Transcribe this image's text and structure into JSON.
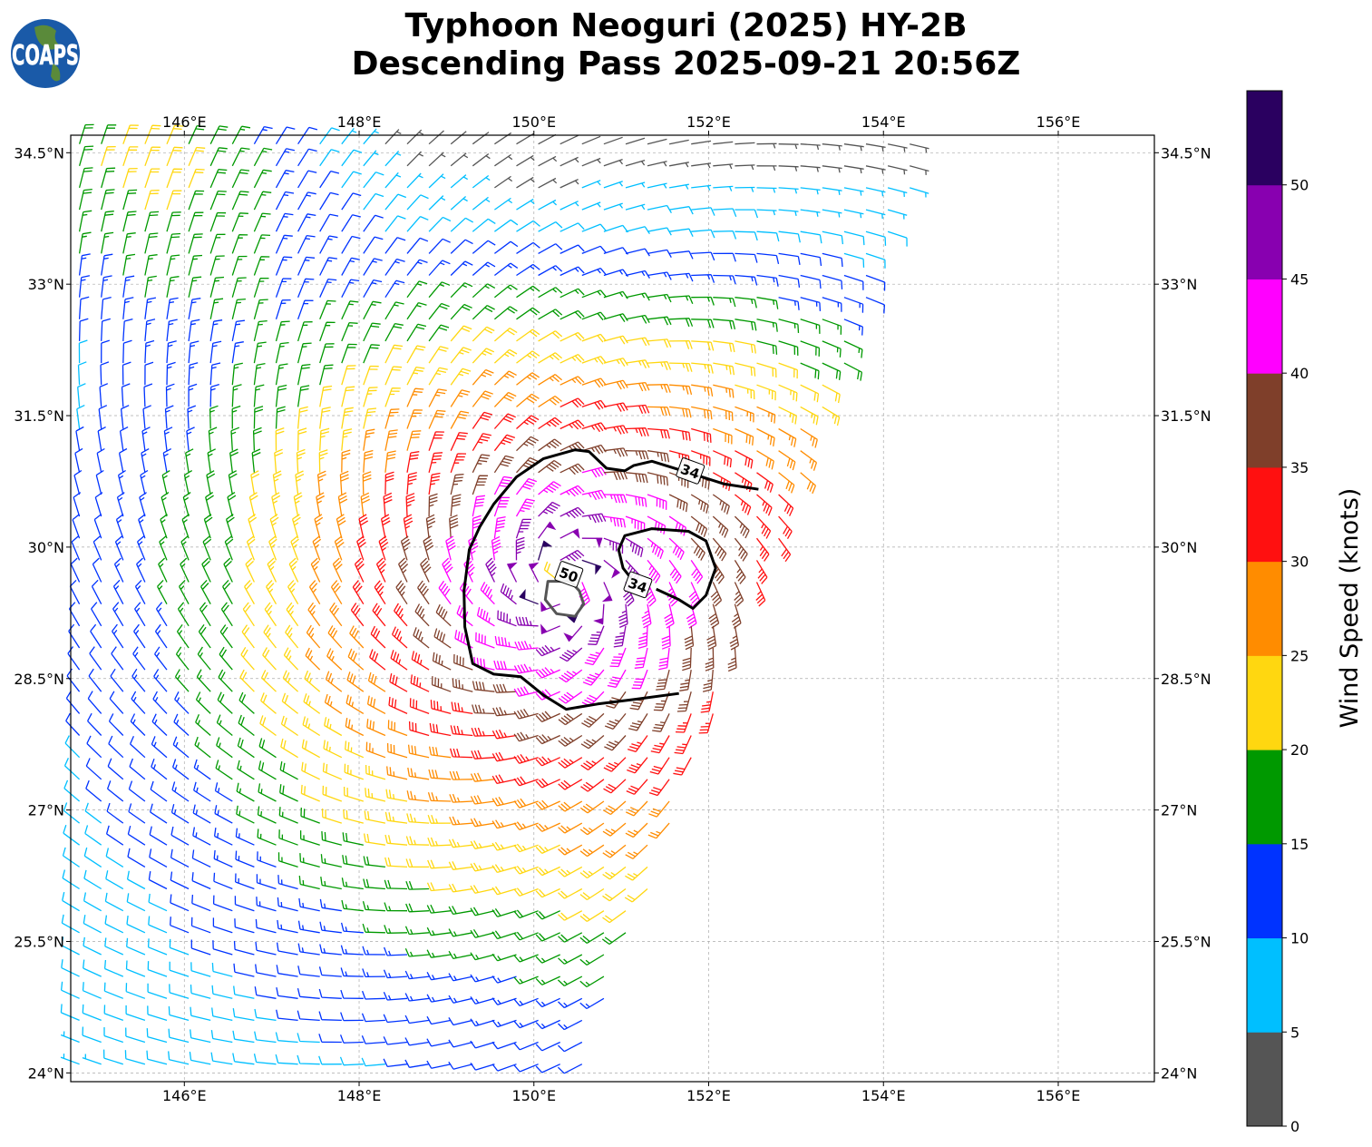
{
  "title_line1": "Typhoon Neoguri (2025) HY-2B",
  "title_line2": "Descending Pass 2025-09-21 20:56Z",
  "logo_text": "COAPS",
  "chart_data": {
    "type": "wind-barb-map",
    "lon_range": [
      144.7,
      157.1
    ],
    "lat_range": [
      23.9,
      34.7
    ],
    "lon_ticks": [
      146,
      148,
      150,
      152,
      154,
      156
    ],
    "lon_tick_labels": [
      "146°E",
      "148°E",
      "150°E",
      "152°E",
      "154°E",
      "156°E"
    ],
    "lat_ticks": [
      34.5,
      33,
      31.5,
      30,
      28.5,
      27,
      25.5,
      24
    ],
    "lat_tick_labels": [
      "34.5°N",
      "33°N",
      "31.5°N",
      "30°N",
      "28.5°N",
      "27°N",
      "25.5°N",
      "24°N"
    ],
    "grid": true,
    "storm_center": {
      "lon": 150.32,
      "lat": 29.61
    },
    "swath_edge": {
      "north_lon": 154.5,
      "north_lat": 34.6,
      "south_lon": 150.5,
      "south_lat": 23.95
    },
    "wind_profile": {
      "radius_deg": [
        0,
        0.3,
        0.6,
        1.0,
        1.5,
        2.0,
        2.5,
        3.0,
        3.6,
        4.3,
        5.2,
        6.2,
        8.0
      ],
      "speed_kt": [
        20,
        52,
        47,
        43,
        38,
        33,
        29,
        25,
        21,
        16,
        12,
        9,
        7
      ]
    },
    "contours": [
      {
        "level": 34,
        "label": "34",
        "label_at": [
          151.79,
          30.87
        ],
        "points": [
          [
            152.57,
            30.66
          ],
          [
            152.18,
            30.72
          ],
          [
            151.77,
            30.85
          ],
          [
            151.35,
            30.98
          ],
          [
            151.14,
            30.93
          ],
          [
            151.04,
            30.87
          ],
          [
            150.83,
            30.9
          ],
          [
            150.63,
            31.09
          ],
          [
            150.47,
            31.11
          ],
          [
            150.11,
            31.01
          ],
          [
            149.8,
            30.8
          ],
          [
            149.54,
            30.49
          ],
          [
            149.38,
            30.23
          ],
          [
            149.26,
            29.97
          ],
          [
            149.2,
            29.5
          ],
          [
            149.21,
            29.09
          ],
          [
            149.3,
            28.67
          ],
          [
            149.54,
            28.55
          ],
          [
            149.85,
            28.52
          ],
          [
            150.11,
            28.31
          ],
          [
            150.37,
            28.15
          ],
          [
            150.73,
            28.21
          ],
          [
            151.14,
            28.26
          ],
          [
            151.66,
            28.33
          ]
        ],
        "color": "#000000"
      },
      {
        "level": 34,
        "label": "34",
        "label_at": [
          151.19,
          29.57
        ],
        "points": [
          [
            151.4,
            29.52
          ],
          [
            151.66,
            29.4
          ],
          [
            151.82,
            29.3
          ],
          [
            151.97,
            29.45
          ],
          [
            152.08,
            29.76
          ],
          [
            151.97,
            30.07
          ],
          [
            151.77,
            30.18
          ],
          [
            151.35,
            30.21
          ],
          [
            151.04,
            30.13
          ],
          [
            150.97,
            29.97
          ],
          [
            151.02,
            29.76
          ],
          [
            151.14,
            29.61
          ]
        ],
        "color": "#000000"
      },
      {
        "level": 50,
        "label": "50",
        "label_at": [
          150.4,
          29.69
        ],
        "points": [
          [
            150.16,
            29.61
          ],
          [
            150.13,
            29.4
          ],
          [
            150.26,
            29.24
          ],
          [
            150.47,
            29.21
          ],
          [
            150.57,
            29.35
          ],
          [
            150.52,
            29.5
          ],
          [
            150.42,
            29.61
          ]
        ],
        "color": "#555555"
      }
    ],
    "colorbar": {
      "label": "Wind Speed (knots)",
      "ticks": [
        "0",
        "5",
        "10",
        "15",
        "20",
        "25",
        "30",
        "35",
        "40",
        "45",
        "50"
      ],
      "bounds": [
        0,
        5,
        10,
        15,
        20,
        25,
        30,
        35,
        40,
        45,
        50,
        55
      ],
      "colors": [
        "#555555",
        "#00bfff",
        "#0033ff",
        "#009900",
        "#ffd710",
        "#ff8c00",
        "#ff1010",
        "#7f3f2a",
        "#ff00ff",
        "#8800b0",
        "#2a0060"
      ]
    }
  }
}
